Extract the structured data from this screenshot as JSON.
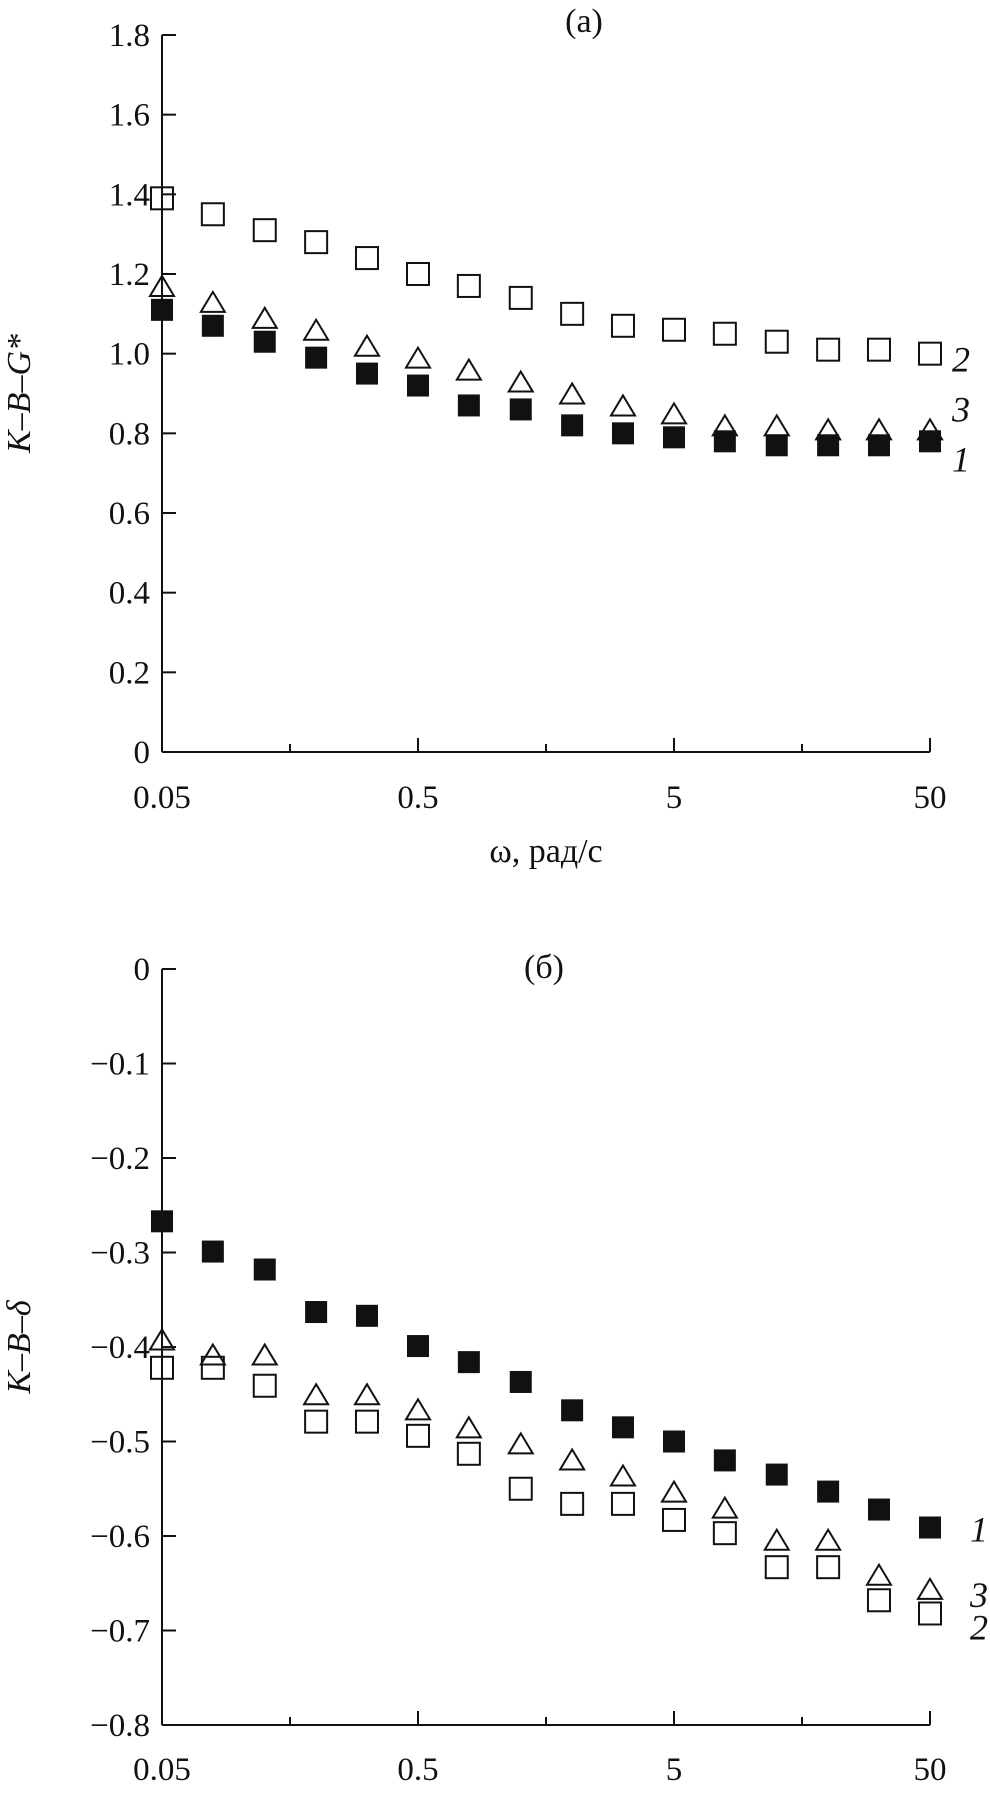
{
  "chart_data": [
    {
      "type": "scatter",
      "panel_label": "(a)",
      "ylabel": "K–B–G*",
      "xlabel": "ω, рад/с",
      "x_scale": "log",
      "xlim": [
        0.05,
        50
      ],
      "ylim": [
        0,
        1.8
      ],
      "x_ticks": [
        0.05,
        0.5,
        5,
        50
      ],
      "x_tick_labels": [
        "0.05",
        "0.5",
        "5",
        "50"
      ],
      "y_ticks": [
        0,
        0.2,
        0.4,
        0.6,
        0.8,
        1.0,
        1.2,
        1.4,
        1.6,
        1.8
      ],
      "y_tick_labels": [
        "0",
        "0.2",
        "0.4",
        "0.6",
        "0.8",
        "1.0",
        "1.2",
        "1.4",
        "1.6",
        "1.8"
      ],
      "x": [
        0.05,
        0.079,
        0.126,
        0.2,
        0.316,
        0.5,
        0.79,
        1.26,
        2.0,
        3.16,
        5.0,
        7.9,
        12.6,
        20,
        31.6,
        50
      ],
      "series": [
        {
          "name": "1",
          "marker": "filled-square",
          "values": [
            1.11,
            1.07,
            1.03,
            0.99,
            0.95,
            0.92,
            0.87,
            0.86,
            0.82,
            0.8,
            0.79,
            0.78,
            0.77,
            0.77,
            0.77,
            0.78
          ]
        },
        {
          "name": "2",
          "marker": "open-square",
          "values": [
            1.39,
            1.35,
            1.31,
            1.28,
            1.24,
            1.2,
            1.17,
            1.14,
            1.1,
            1.07,
            1.06,
            1.05,
            1.03,
            1.01,
            1.01,
            1.0
          ]
        },
        {
          "name": "3",
          "marker": "open-triangle",
          "values": [
            1.17,
            1.13,
            1.09,
            1.06,
            1.02,
            0.99,
            0.96,
            0.93,
            0.9,
            0.87,
            0.85,
            0.82,
            0.82,
            0.81,
            0.81,
            0.81
          ]
        }
      ]
    },
    {
      "type": "scatter",
      "panel_label": "(б)",
      "ylabel": "K–B–δ",
      "xlabel": "ω, рад/с",
      "x_scale": "log",
      "xlim": [
        0.05,
        50
      ],
      "ylim": [
        -0.8,
        0
      ],
      "x_ticks": [
        0.05,
        0.5,
        5,
        50
      ],
      "x_tick_labels": [
        "0.05",
        "0.5",
        "5",
        "50"
      ],
      "y_ticks": [
        0,
        -0.1,
        -0.2,
        -0.3,
        -0.4,
        -0.5,
        -0.6,
        -0.7,
        -0.8
      ],
      "y_tick_labels": [
        "0",
        "−0.1",
        "−0.2",
        "−0.3",
        "−0.4",
        "−0.5",
        "−0.6",
        "−0.7",
        "−0.8"
      ],
      "x": [
        0.05,
        0.079,
        0.126,
        0.2,
        0.316,
        0.5,
        0.79,
        1.26,
        2.0,
        3.16,
        5.0,
        7.9,
        12.6,
        20,
        31.6,
        50
      ],
      "series": [
        {
          "name": "1",
          "marker": "filled-square",
          "values": [
            -0.267,
            -0.299,
            -0.318,
            -0.363,
            -0.367,
            -0.399,
            -0.416,
            -0.437,
            -0.467,
            -0.485,
            -0.5,
            -0.52,
            -0.535,
            -0.553,
            -0.572,
            -0.591
          ]
        },
        {
          "name": "2",
          "marker": "open-square",
          "values": [
            -0.422,
            -0.422,
            -0.441,
            -0.479,
            -0.479,
            -0.494,
            -0.513,
            -0.55,
            -0.566,
            -0.566,
            -0.583,
            -0.597,
            -0.633,
            -0.633,
            -0.668,
            -0.682
          ]
        },
        {
          "name": "3",
          "marker": "open-triangle",
          "values": [
            -0.392,
            -0.408,
            -0.408,
            -0.45,
            -0.45,
            -0.466,
            -0.485,
            -0.502,
            -0.519,
            -0.536,
            -0.553,
            -0.57,
            -0.604,
            -0.604,
            -0.641,
            -0.656
          ]
        }
      ]
    }
  ]
}
